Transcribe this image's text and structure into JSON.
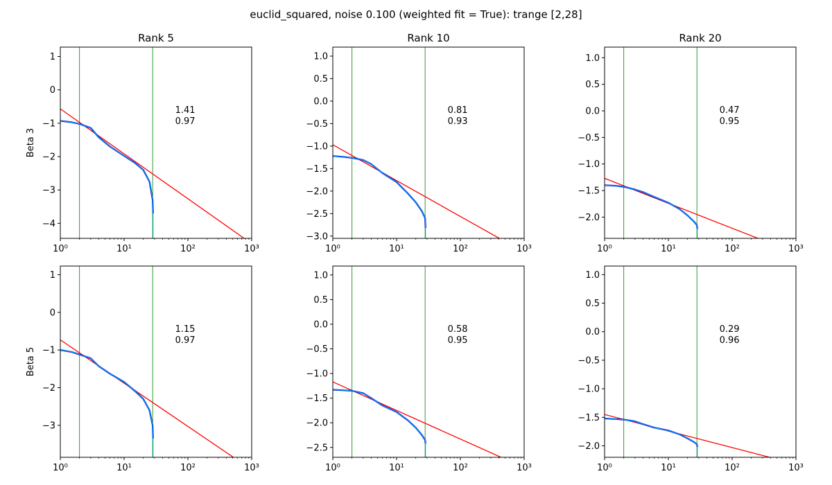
{
  "suptitle": "euclid_squared, noise 0.100 (weighted fit = True): trange [2,28]",
  "colors": {
    "fit": "#ff0000",
    "trange": "#008000",
    "data_dark": "#0000cc",
    "data_light": "#00bfff"
  },
  "chart_data": [
    {
      "type": "line",
      "title": "Rank 5",
      "ylabel": "Beta 3",
      "xscale": "log",
      "xlim": [
        1,
        1000
      ],
      "ylim": [
        -4.45,
        1.28
      ],
      "yticks": [
        1,
        0,
        -1,
        -2,
        -3,
        -4
      ],
      "ytick_labels": [
        "1",
        "0",
        "−1",
        "−2",
        "−3",
        "−4"
      ],
      "xtick_labels": [
        "10⁰",
        "10¹",
        "10²",
        "10³"
      ],
      "vlines": [
        2,
        28
      ],
      "fit_line": {
        "x": [
          1,
          1000
        ],
        "y": [
          -0.57,
          -4.61
        ]
      },
      "series": [
        {
          "x": [
            1,
            1.5,
            2,
            3,
            4,
            6,
            10,
            15,
            20,
            25,
            28,
            28.5
          ],
          "y": [
            -0.93,
            -0.97,
            -1.02,
            -1.14,
            -1.42,
            -1.7,
            -1.98,
            -2.2,
            -2.4,
            -2.75,
            -3.3,
            -3.7
          ]
        }
      ],
      "annotation": [
        "1.41",
        "0.97"
      ]
    },
    {
      "type": "line",
      "title": "Rank 10",
      "ylabel": "",
      "xscale": "log",
      "xlim": [
        1,
        1000
      ],
      "ylim": [
        -3.05,
        1.2
      ],
      "yticks": [
        1.0,
        0.5,
        0.0,
        -0.5,
        -1.0,
        -1.5,
        -2.0,
        -2.5,
        -3.0
      ],
      "ytick_labels": [
        "1.0",
        "0.5",
        "0.0",
        "−0.5",
        "−1.0",
        "−1.5",
        "−2.0",
        "−2.5",
        "−3.0"
      ],
      "xtick_labels": [
        "10⁰",
        "10¹",
        "10²",
        "10³"
      ],
      "vlines": [
        2,
        28
      ],
      "fit_line": {
        "x": [
          1,
          1000
        ],
        "y": [
          -0.97,
          -3.36
        ]
      },
      "series": [
        {
          "x": [
            1,
            1.5,
            2,
            3,
            4,
            6,
            10,
            15,
            20,
            25,
            28,
            28.5
          ],
          "y": [
            -1.22,
            -1.24,
            -1.26,
            -1.31,
            -1.4,
            -1.6,
            -1.8,
            -2.05,
            -2.25,
            -2.45,
            -2.6,
            -2.82
          ]
        }
      ],
      "annotation": [
        "0.81",
        "0.93"
      ]
    },
    {
      "type": "line",
      "title": "Rank 20",
      "ylabel": "",
      "xscale": "log",
      "xlim": [
        1,
        1000
      ],
      "ylim": [
        -2.4,
        1.2
      ],
      "yticks": [
        1.0,
        0.5,
        0.0,
        -0.5,
        -1.0,
        -1.5,
        -2.0
      ],
      "ytick_labels": [
        "1.0",
        "0.5",
        "0.0",
        "−0.5",
        "−1.0",
        "−1.5",
        "−2.0"
      ],
      "xtick_labels": [
        "10⁰",
        "10¹",
        "10²",
        "10³"
      ],
      "vlines": [
        2,
        28
      ],
      "fit_line": {
        "x": [
          1,
          1000
        ],
        "y": [
          -1.27,
          -2.68
        ]
      },
      "series": [
        {
          "x": [
            1,
            1.5,
            2,
            3,
            4,
            6,
            10,
            15,
            20,
            25,
            28,
            28.5
          ],
          "y": [
            -1.4,
            -1.41,
            -1.43,
            -1.48,
            -1.53,
            -1.62,
            -1.73,
            -1.85,
            -1.97,
            -2.08,
            -2.15,
            -2.22
          ]
        }
      ],
      "annotation": [
        "0.47",
        "0.95"
      ]
    },
    {
      "type": "line",
      "title": "",
      "ylabel": "Beta 5",
      "xscale": "log",
      "xlim": [
        1,
        1000
      ],
      "ylim": [
        -3.85,
        1.23
      ],
      "yticks": [
        1,
        0,
        -1,
        -2,
        -3
      ],
      "ytick_labels": [
        "1",
        "0",
        "−1",
        "−2",
        "−3"
      ],
      "xtick_labels": [
        "10⁰",
        "10¹",
        "10²",
        "10³"
      ],
      "vlines": [
        2,
        28
      ],
      "fit_line": {
        "x": [
          1,
          1000
        ],
        "y": [
          -0.73,
          -4.18
        ]
      },
      "series": [
        {
          "x": [
            1,
            1.5,
            2,
            3,
            4,
            6,
            10,
            15,
            20,
            25,
            28,
            28.5
          ],
          "y": [
            -1.0,
            -1.05,
            -1.12,
            -1.22,
            -1.43,
            -1.63,
            -1.85,
            -2.1,
            -2.3,
            -2.6,
            -3.0,
            -3.35
          ]
        }
      ],
      "annotation": [
        "1.15",
        "0.97"
      ]
    },
    {
      "type": "line",
      "title": "",
      "ylabel": "",
      "xscale": "log",
      "xlim": [
        1,
        1000
      ],
      "ylim": [
        -2.7,
        1.18
      ],
      "yticks": [
        1.0,
        0.5,
        0.0,
        -0.5,
        -1.0,
        -1.5,
        -2.0,
        -2.5
      ],
      "ytick_labels": [
        "1.0",
        "0.5",
        "0.0",
        "−0.5",
        "−1.0",
        "−1.5",
        "−2.0",
        "−2.5"
      ],
      "xtick_labels": [
        "10⁰",
        "10¹",
        "10²",
        "10³"
      ],
      "vlines": [
        2,
        28
      ],
      "fit_line": {
        "x": [
          1,
          1000
        ],
        "y": [
          -1.17,
          -2.91
        ]
      },
      "series": [
        {
          "x": [
            1,
            1.5,
            2,
            3,
            4,
            6,
            10,
            15,
            20,
            25,
            28,
            28.5
          ],
          "y": [
            -1.33,
            -1.34,
            -1.35,
            -1.4,
            -1.5,
            -1.65,
            -1.78,
            -1.95,
            -2.1,
            -2.25,
            -2.35,
            -2.42
          ]
        }
      ],
      "annotation": [
        "0.58",
        "0.95"
      ]
    },
    {
      "type": "line",
      "title": "",
      "ylabel": "",
      "xscale": "log",
      "xlim": [
        1,
        1000
      ],
      "ylim": [
        -2.2,
        1.15
      ],
      "yticks": [
        1.0,
        0.5,
        0.0,
        -0.5,
        -1.0,
        -1.5,
        -2.0
      ],
      "ytick_labels": [
        "1.0",
        "0.5",
        "0.0",
        "−0.5",
        "−1.0",
        "−1.5",
        "−2.0"
      ],
      "xtick_labels": [
        "10⁰",
        "10¹",
        "10²",
        "10³"
      ],
      "vlines": [
        2,
        28
      ],
      "fit_line": {
        "x": [
          1,
          1000
        ],
        "y": [
          -1.45,
          -2.32
        ]
      },
      "series": [
        {
          "x": [
            1,
            1.5,
            2,
            3,
            4,
            6,
            10,
            15,
            20,
            25,
            28,
            28.5
          ],
          "y": [
            -1.52,
            -1.53,
            -1.54,
            -1.57,
            -1.62,
            -1.68,
            -1.73,
            -1.8,
            -1.87,
            -1.93,
            -1.97,
            -2.02
          ]
        }
      ],
      "annotation": [
        "0.29",
        "0.96"
      ]
    }
  ]
}
